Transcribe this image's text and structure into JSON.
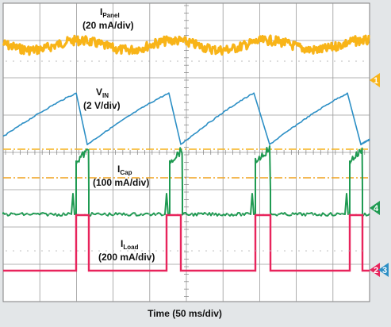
{
  "chart_data": {
    "type": "line",
    "title": "",
    "xlabel": "Time (50 ms/div)",
    "ylabel": "",
    "grid": true,
    "x_div": 10,
    "y_div": 8,
    "series": [
      {
        "name": "IPanel",
        "label_main": "I",
        "label_sub": "Panel",
        "scale": "(20 mA/div)",
        "color": "#f8b418",
        "marker": "1"
      },
      {
        "name": "VIN",
        "label_main": "V",
        "label_sub": "IN",
        "scale": "(2 V/div)",
        "color": "#2c8fc5",
        "marker": "3"
      },
      {
        "name": "ICap",
        "label_main": "I",
        "label_sub": "Cap",
        "scale": "(100 mA/div)",
        "color": "#1f9a52",
        "marker": "4"
      },
      {
        "name": "ILoad",
        "label_main": "I",
        "label_sub": "Load",
        "scale": "(200 mA/div)",
        "color": "#e8245c",
        "marker": "2"
      }
    ],
    "reference_line_colors": [
      "#f6b21b",
      "#f0a21e"
    ]
  }
}
